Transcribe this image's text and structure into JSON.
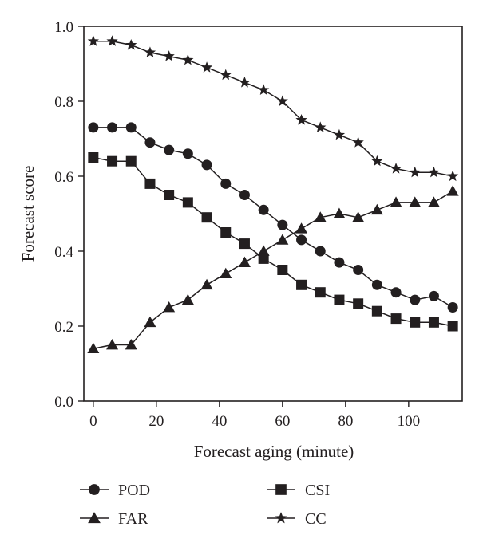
{
  "chart_data": {
    "type": "line",
    "xlabel": "Forecast aging (minute)",
    "ylabel": "Forecast score",
    "xlim": [
      -3,
      117
    ],
    "ylim": [
      0.0,
      1.0
    ],
    "x_ticks": [
      0,
      20,
      40,
      60,
      80,
      100
    ],
    "x_tick_labels": [
      "0",
      "20",
      "40",
      "60",
      "80",
      "100"
    ],
    "y_ticks": [
      0.0,
      0.2,
      0.4,
      0.6,
      0.8,
      1.0
    ],
    "y_tick_labels": [
      "0.0",
      "0.2",
      "0.4",
      "0.6",
      "0.8",
      "1.0"
    ],
    "grid": false,
    "legend_position": "bottom",
    "x": [
      0,
      6,
      12,
      18,
      24,
      30,
      36,
      42,
      48,
      54,
      60,
      66,
      72,
      78,
      84,
      90,
      96,
      102,
      108,
      114
    ],
    "series": [
      {
        "name": "POD",
        "marker": "circle",
        "values": [
          0.73,
          0.73,
          0.73,
          0.69,
          0.67,
          0.66,
          0.63,
          0.58,
          0.55,
          0.51,
          0.47,
          0.43,
          0.4,
          0.37,
          0.35,
          0.31,
          0.29,
          0.27,
          0.28,
          0.25
        ]
      },
      {
        "name": "FAR",
        "marker": "triangle",
        "values": [
          0.14,
          0.15,
          0.15,
          0.21,
          0.25,
          0.27,
          0.31,
          0.34,
          0.37,
          0.4,
          0.43,
          0.46,
          0.49,
          0.5,
          0.49,
          0.51,
          0.53,
          0.53,
          0.53,
          0.56
        ]
      },
      {
        "name": "CSI",
        "marker": "square",
        "values": [
          0.65,
          0.64,
          0.64,
          0.58,
          0.55,
          0.53,
          0.49,
          0.45,
          0.42,
          0.38,
          0.35,
          0.31,
          0.29,
          0.27,
          0.26,
          0.24,
          0.22,
          0.21,
          0.21,
          0.2
        ]
      },
      {
        "name": "CC",
        "marker": "star",
        "values": [
          0.96,
          0.96,
          0.95,
          0.93,
          0.92,
          0.91,
          0.89,
          0.87,
          0.85,
          0.83,
          0.8,
          0.75,
          0.73,
          0.71,
          0.69,
          0.64,
          0.62,
          0.61,
          0.61,
          0.6
        ]
      }
    ],
    "colors": {
      "line": "#231f20",
      "marker": "#231f20",
      "axes": "#231f20"
    }
  }
}
